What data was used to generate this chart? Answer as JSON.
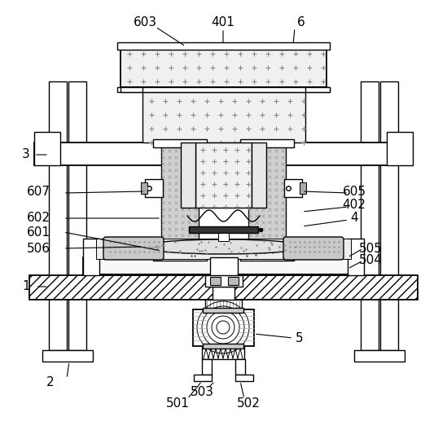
{
  "bg_color": "#ffffff",
  "line_color": "#000000",
  "figsize": [
    5.49,
    5.17
  ],
  "dpi": 100,
  "plus_color": "#b0b0b0",
  "hatch_fill": "#e8e8e8",
  "col_fill": "#c0c0c0",
  "tray_fill": "#d8d8d8"
}
